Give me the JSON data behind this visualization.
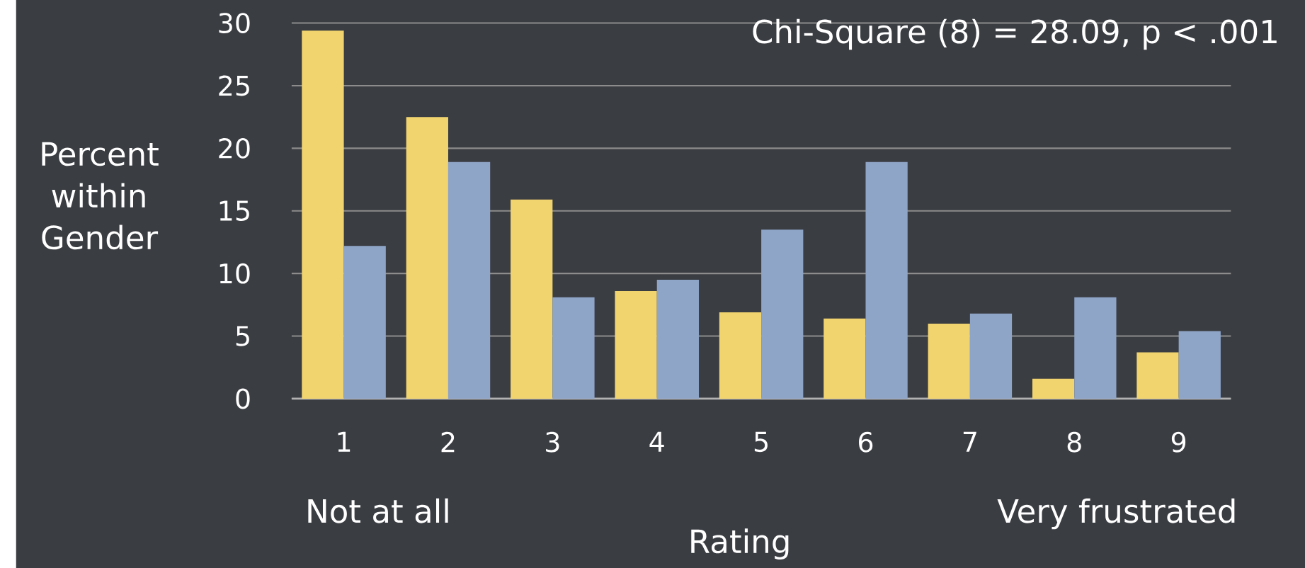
{
  "chart_data": {
    "type": "bar",
    "xlabel": "Rating",
    "ylabel": "Percent within Gender",
    "categories": [
      "1",
      "2",
      "3",
      "4",
      "5",
      "6",
      "7",
      "8",
      "9"
    ],
    "series": [
      {
        "color": "#f2d46e",
        "values": [
          29.4,
          22.5,
          15.9,
          8.6,
          6.9,
          6.4,
          6.0,
          1.6,
          3.7
        ]
      },
      {
        "color": "#8fa5c8",
        "values": [
          12.2,
          18.9,
          8.1,
          9.5,
          13.5,
          18.9,
          6.8,
          8.1,
          5.4
        ]
      }
    ],
    "ylim": [
      0,
      30
    ],
    "yticks": [
      0,
      5,
      10,
      15,
      20,
      25,
      30
    ],
    "grid": "y",
    "annotations": [
      "Chi-Square (8) = 28.09, p < .001",
      "Not at all",
      "Very frustrated"
    ]
  }
}
